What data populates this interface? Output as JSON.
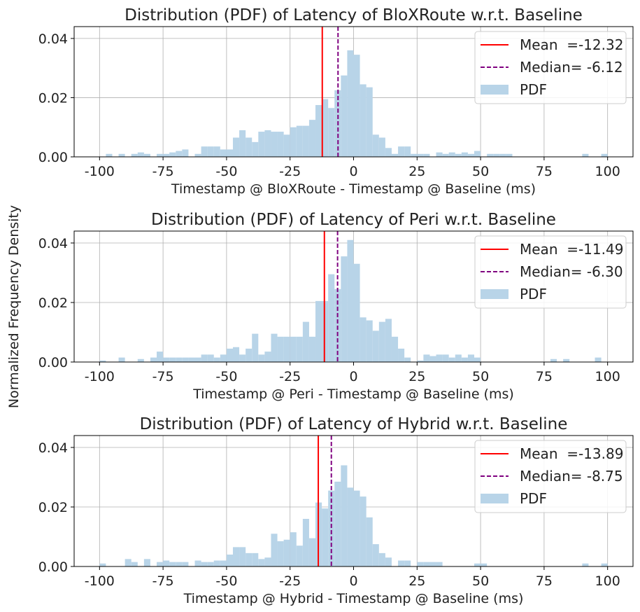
{
  "figure": {
    "shared_ylabel": "Normalized Frequency Density"
  },
  "chart_data": [
    {
      "type": "bar",
      "title": "Distribution (PDF) of Latency of BloXRoute w.r.t. Baseline",
      "xlabel": "Timestamp @ BloXRoute - Timestamp @ Baseline (ms)",
      "ylabel": "",
      "xlim": [
        -110,
        110
      ],
      "ylim": [
        0,
        0.044
      ],
      "xticks": [
        -100,
        -75,
        -50,
        -25,
        0,
        25,
        50,
        75,
        100
      ],
      "xtick_labels": [
        "-100",
        "-75",
        "-50",
        "-25",
        "0",
        "25",
        "50",
        "75",
        "100"
      ],
      "yticks": [
        0,
        0.02,
        0.04
      ],
      "ytick_labels": [
        "0.00",
        "0.02",
        "0.04"
      ],
      "grid": true,
      "legend_position": "top-right",
      "bin_width": 2.5,
      "bin_centers": [
        -96.25,
        -91.25,
        -86.25,
        -83.75,
        -81.25,
        -76.25,
        -73.75,
        -71.25,
        -68.75,
        -66.25,
        -61.25,
        -58.75,
        -56.25,
        -53.75,
        -51.25,
        -48.75,
        -46.25,
        -43.75,
        -41.25,
        -38.75,
        -36.25,
        -33.75,
        -31.25,
        -28.75,
        -26.25,
        -23.75,
        -21.25,
        -18.75,
        -16.25,
        -13.75,
        -11.25,
        -8.75,
        -6.25,
        -3.75,
        -1.25,
        1.25,
        3.75,
        6.25,
        8.75,
        11.25,
        13.75,
        16.25,
        18.75,
        21.25,
        23.75,
        26.25,
        28.75,
        33.75,
        36.25,
        38.75,
        41.25,
        43.75,
        46.25,
        48.75,
        53.75,
        56.25,
        58.75,
        61.25,
        91.25,
        98.75
      ],
      "series": [
        {
          "name": "PDF",
          "color": "#b8d4e8",
          "values": [
            0.001,
            0.001,
            0.001,
            0.0015,
            0.001,
            0.001,
            0.001,
            0.0015,
            0.002,
            0.0025,
            0.001,
            0.0035,
            0.0035,
            0.0035,
            0.0025,
            0.0025,
            0.0065,
            0.009,
            0.0065,
            0.005,
            0.0085,
            0.009,
            0.0085,
            0.0085,
            0.0075,
            0.01,
            0.0105,
            0.0105,
            0.0125,
            0.0175,
            0.0195,
            0.0165,
            0.0225,
            0.0275,
            0.036,
            0.0345,
            0.0245,
            0.0235,
            0.0075,
            0.0065,
            0.003,
            0.001,
            0.0035,
            0.0035,
            0.001,
            0.001,
            0.001,
            0.0015,
            0.001,
            0.0015,
            0.001,
            0.0015,
            0.001,
            0.002,
            0.001,
            0.001,
            0.001,
            0.001,
            0.001,
            0.001
          ]
        }
      ],
      "lines": [
        {
          "label": "Mean  =-12.32",
          "x": -12.32,
          "color": "#ff0000",
          "style": "solid"
        },
        {
          "label": "Median= -6.12",
          "x": -6.12,
          "color": "#800080",
          "style": "dashed"
        }
      ]
    },
    {
      "type": "bar",
      "title": "Distribution (PDF) of Latency of Peri w.r.t. Baseline",
      "xlabel": "Timestamp @ Peri - Timestamp @ Baseline (ms)",
      "ylabel": "",
      "xlim": [
        -110,
        110
      ],
      "ylim": [
        0,
        0.044
      ],
      "xticks": [
        -100,
        -75,
        -50,
        -25,
        0,
        25,
        50,
        75,
        100
      ],
      "xtick_labels": [
        "-100",
        "-75",
        "-50",
        "-25",
        "0",
        "25",
        "50",
        "75",
        "100"
      ],
      "yticks": [
        0,
        0.02,
        0.04
      ],
      "ytick_labels": [
        "0.00",
        "0.02",
        "0.04"
      ],
      "grid": true,
      "legend_position": "top-right",
      "bin_width": 2.5,
      "bin_centers": [
        -98.75,
        -91.25,
        -83.75,
        -78.75,
        -76.25,
        -73.75,
        -71.25,
        -68.75,
        -66.25,
        -63.75,
        -61.25,
        -58.75,
        -56.25,
        -53.75,
        -51.25,
        -48.75,
        -46.25,
        -43.75,
        -41.25,
        -38.75,
        -36.25,
        -33.75,
        -31.25,
        -28.75,
        -26.25,
        -23.75,
        -21.25,
        -18.75,
        -16.25,
        -13.75,
        -11.25,
        -8.75,
        -6.25,
        -3.75,
        -1.25,
        1.25,
        3.75,
        6.25,
        8.75,
        11.25,
        13.75,
        16.25,
        18.75,
        21.25,
        26.25,
        28.75,
        31.25,
        33.75,
        36.25,
        38.75,
        41.25,
        43.75,
        46.25,
        48.75,
        78.75,
        83.75,
        96.25
      ],
      "series": [
        {
          "name": "PDF",
          "color": "#b8d4e8",
          "values": [
            0.0005,
            0.0015,
            0.001,
            0.0015,
            0.0035,
            0.0015,
            0.0015,
            0.0015,
            0.0015,
            0.0015,
            0.0015,
            0.0025,
            0.0025,
            0.0015,
            0.0025,
            0.0045,
            0.005,
            0.0025,
            0.0045,
            0.0095,
            0.0025,
            0.0035,
            0.0095,
            0.0085,
            0.0085,
            0.0085,
            0.0085,
            0.0135,
            0.0085,
            0.0205,
            0.0205,
            0.0295,
            0.0245,
            0.0355,
            0.041,
            0.033,
            0.015,
            0.014,
            0.0105,
            0.0135,
            0.0145,
            0.0085,
            0.0045,
            0.0015,
            0.0005,
            0.0025,
            0.002,
            0.0025,
            0.0025,
            0.0015,
            0.0025,
            0.0015,
            0.0025,
            0.0015,
            0.001,
            0.001,
            0.0015
          ]
        }
      ],
      "lines": [
        {
          "label": "Mean  =-11.49",
          "x": -11.49,
          "color": "#ff0000",
          "style": "solid"
        },
        {
          "label": "Median= -6.30",
          "x": -6.3,
          "color": "#800080",
          "style": "dashed"
        }
      ]
    },
    {
      "type": "bar",
      "title": "Distribution (PDF) of Latency of Hybrid w.r.t. Baseline",
      "xlabel": "Timestamp @ Hybrid - Timestamp @ Baseline (ms)",
      "ylabel": "",
      "xlim": [
        -110,
        110
      ],
      "ylim": [
        0,
        0.044
      ],
      "xticks": [
        -100,
        -75,
        -50,
        -25,
        0,
        25,
        50,
        75,
        100
      ],
      "xtick_labels": [
        "-100",
        "-75",
        "-50",
        "-25",
        "0",
        "25",
        "50",
        "75",
        "100"
      ],
      "yticks": [
        0,
        0.02,
        0.04
      ],
      "ytick_labels": [
        "0.00",
        "0.02",
        "0.04"
      ],
      "grid": true,
      "legend_position": "top-right",
      "bin_width": 2.5,
      "bin_centers": [
        -98.75,
        -88.75,
        -86.25,
        -81.25,
        -76.25,
        -73.75,
        -71.25,
        -68.75,
        -66.25,
        -61.25,
        -58.75,
        -56.25,
        -53.75,
        -51.25,
        -48.75,
        -46.25,
        -43.75,
        -41.25,
        -38.75,
        -36.25,
        -33.75,
        -31.25,
        -28.75,
        -26.25,
        -23.75,
        -21.25,
        -18.75,
        -16.25,
        -13.75,
        -11.25,
        -8.75,
        -6.25,
        -3.75,
        -1.25,
        1.25,
        3.75,
        6.25,
        8.75,
        11.25,
        13.75,
        18.75,
        21.25,
        26.25,
        28.75,
        31.25,
        33.75,
        48.75,
        51.25,
        91.25,
        98.75
      ],
      "series": [
        {
          "name": "PDF",
          "color": "#b8d4e8",
          "values": [
            0.001,
            0.0025,
            0.0015,
            0.0025,
            0.0015,
            0.002,
            0.0015,
            0.0015,
            0.0015,
            0.002,
            0.0015,
            0.0015,
            0.002,
            0.002,
            0.004,
            0.0065,
            0.0065,
            0.0045,
            0.0045,
            0.0025,
            0.003,
            0.011,
            0.0085,
            0.009,
            0.0115,
            0.007,
            0.016,
            0.0095,
            0.0215,
            0.0195,
            0.0255,
            0.0285,
            0.034,
            0.0265,
            0.0255,
            0.0235,
            0.0165,
            0.0075,
            0.0045,
            0.003,
            0.002,
            0.002,
            0.0015,
            0.0015,
            0.0015,
            0.0015,
            0.001,
            0.001,
            0.001,
            0.001
          ]
        }
      ],
      "lines": [
        {
          "label": "Mean  =-13.89",
          "x": -13.89,
          "color": "#ff0000",
          "style": "solid"
        },
        {
          "label": "Median= -8.75",
          "x": -8.75,
          "color": "#800080",
          "style": "dashed"
        }
      ]
    }
  ]
}
